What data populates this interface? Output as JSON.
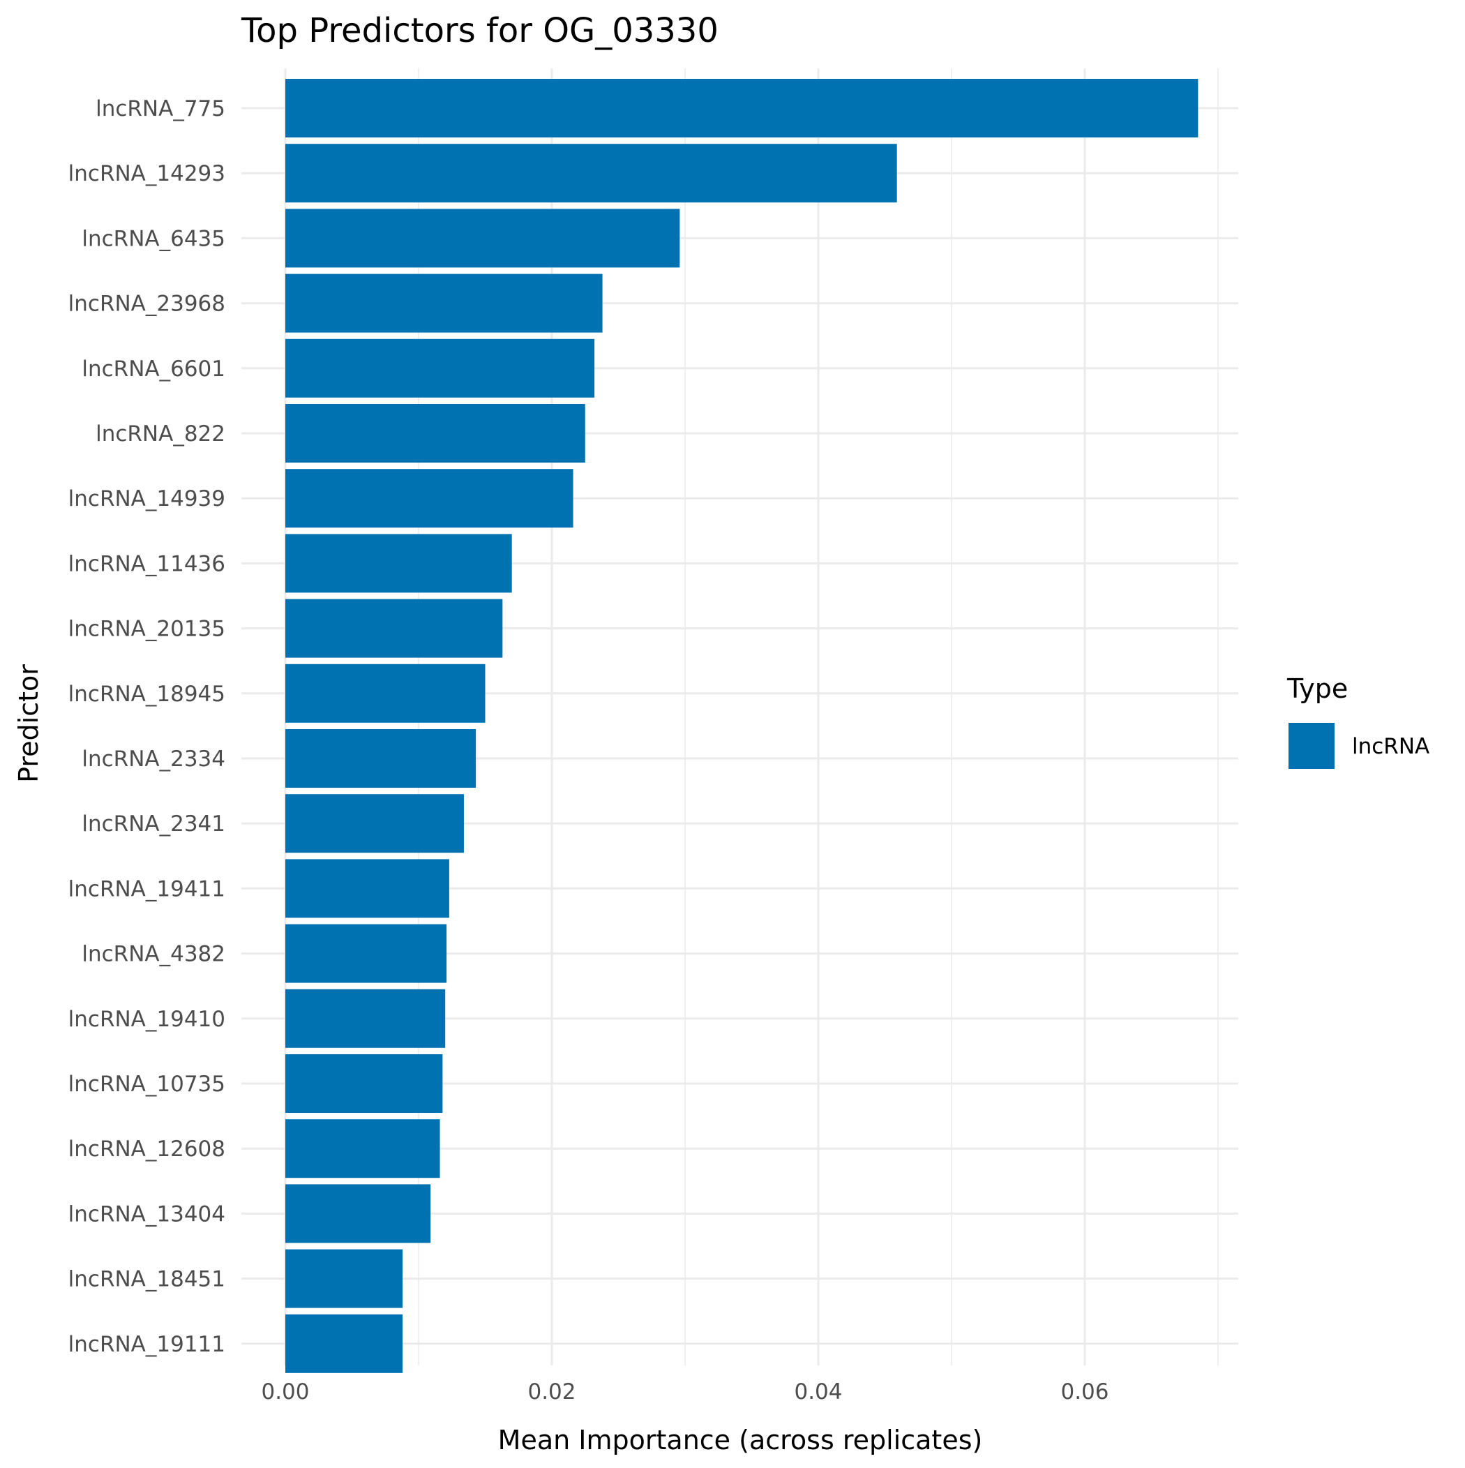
{
  "chart_data": {
    "type": "bar",
    "orientation": "horizontal",
    "title": "Top Predictors for OG_03330",
    "xlabel": "Mean Importance (across replicates)",
    "ylabel": "Predictor",
    "xlim": [
      0,
      0.0719
    ],
    "x_ticks": [
      "0.00",
      "0.02",
      "0.04",
      "0.06"
    ],
    "x_tick_values": [
      0,
      0.02,
      0.04,
      0.06
    ],
    "grid": true,
    "legend": {
      "title": "Type",
      "placement": "right",
      "entries": [
        {
          "label": "lncRNA",
          "color": "#0072B2"
        }
      ]
    },
    "series_color": "#0072B2",
    "categories": [
      "lncRNA_775",
      "lncRNA_14293",
      "lncRNA_6435",
      "lncRNA_23968",
      "lncRNA_6601",
      "lncRNA_822",
      "lncRNA_14939",
      "lncRNA_11436",
      "lncRNA_20135",
      "lncRNA_18945",
      "lncRNA_2334",
      "lncRNA_2341",
      "lncRNA_19411",
      "lncRNA_4382",
      "lncRNA_19410",
      "lncRNA_10735",
      "lncRNA_12608",
      "lncRNA_13404",
      "lncRNA_18451",
      "lncRNA_19111"
    ],
    "values": [
      0.0685,
      0.0459,
      0.0296,
      0.0238,
      0.0232,
      0.0225,
      0.0216,
      0.017,
      0.0163,
      0.015,
      0.0143,
      0.0134,
      0.0123,
      0.0121,
      0.012,
      0.0118,
      0.0116,
      0.0109,
      0.0088,
      0.0088
    ]
  }
}
